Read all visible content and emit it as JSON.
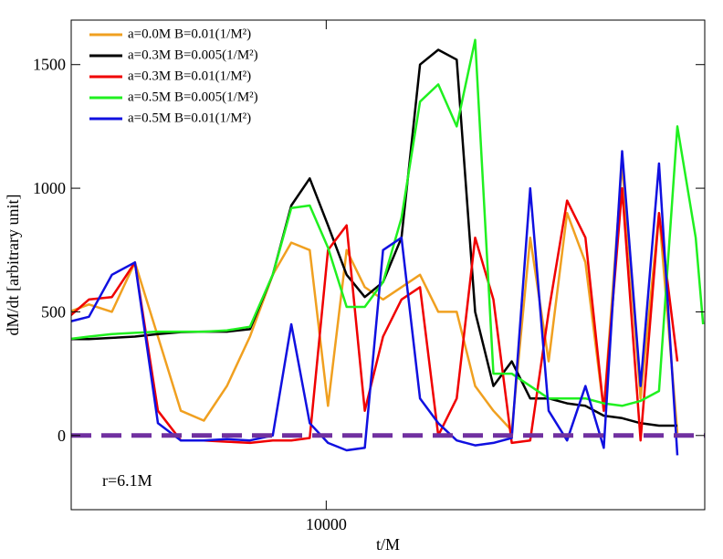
{
  "chart_data": {
    "type": "line",
    "xlabel": "t/M",
    "ylabel": "dM/dt [arbitrary unit]",
    "annotation": "r=6.1M",
    "xscale": "log",
    "x": [
      4270,
      4560,
      4920,
      5310,
      5730,
      6180,
      6670,
      7200,
      7770,
      8380,
      8910,
      9470,
      10060,
      10700,
      11360,
      12070,
      12830,
      13640,
      14490,
      15400,
      16370,
      17390,
      18480,
      19640,
      20880,
      22190,
      23580,
      25060,
      26630,
      28300,
      30080,
      31970,
      33970,
      34810
    ],
    "series": [
      {
        "name": "a=0.0M  B=0.01(1/M²)",
        "color": "#f0a020",
        "values": [
          500,
          530,
          500,
          700,
          400,
          100,
          60,
          200,
          400,
          650,
          780,
          750,
          120,
          750,
          600,
          550,
          600,
          650,
          500,
          500,
          200,
          100,
          20,
          800,
          300,
          900,
          700,
          100,
          1100,
          150,
          900,
          10,
          null,
          null
        ]
      },
      {
        "name": "a=0.3M  B=0.005(1/M²)",
        "color": "#000000",
        "values": [
          390,
          390,
          395,
          400,
          410,
          418,
          420,
          420,
          430,
          650,
          930,
          1040,
          850,
          650,
          560,
          620,
          800,
          1500,
          1560,
          1520,
          500,
          200,
          300,
          150,
          150,
          130,
          120,
          80,
          70,
          50,
          40,
          40,
          null,
          null
        ]
      },
      {
        "name": "a=0.3M  B=0.01(1/M²)",
        "color": "#f00000",
        "values": [
          480,
          550,
          560,
          700,
          100,
          -20,
          -20,
          -25,
          -30,
          -20,
          -20,
          -10,
          750,
          850,
          100,
          400,
          550,
          600,
          0,
          150,
          800,
          550,
          -30,
          -20,
          500,
          950,
          800,
          100,
          1000,
          -20,
          900,
          300,
          null,
          null
        ]
      },
      {
        "name": "a=0.5M  B=0.005(1/M²)",
        "color": "#20f020",
        "values": [
          390,
          400,
          410,
          415,
          420,
          420,
          420,
          425,
          440,
          650,
          920,
          930,
          760,
          520,
          520,
          620,
          880,
          1350,
          1420,
          1250,
          1600,
          250,
          250,
          200,
          150,
          150,
          150,
          130,
          120,
          140,
          180,
          1250,
          800,
          450
        ]
      },
      {
        "name": "a=0.5M  B=0.01(1/M²)",
        "color": "#1010e0",
        "values": [
          460,
          480,
          650,
          700,
          50,
          -20,
          -20,
          -15,
          -20,
          0,
          450,
          50,
          -30,
          -60,
          -50,
          750,
          800,
          150,
          50,
          -20,
          -40,
          -30,
          -10,
          1000,
          100,
          -20,
          200,
          -50,
          1150,
          200,
          1100,
          -80,
          null,
          null
        ]
      }
    ],
    "reference_line": {
      "value": 0,
      "color": "#7030a0"
    },
    "xlim": [
      4300,
      35000
    ],
    "xticks": [
      10000
    ],
    "ylim": [
      -300,
      1680
    ],
    "yticks": [
      0,
      500,
      1000,
      1500
    ],
    "legend": "upper left"
  }
}
